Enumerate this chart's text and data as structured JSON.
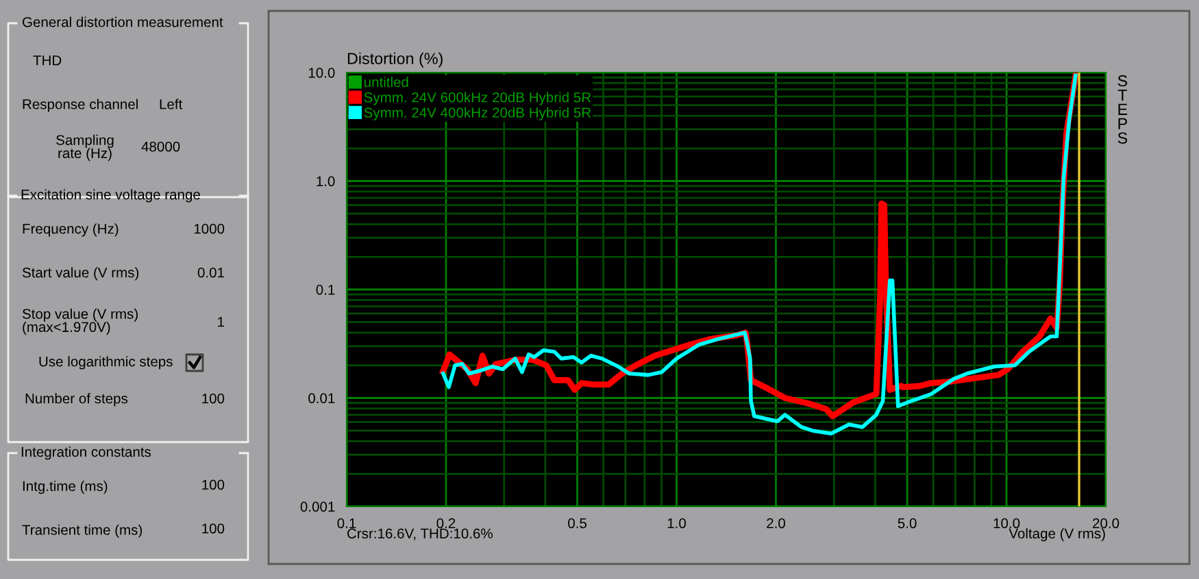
{
  "chart_data": [
    {
      "type": "other",
      "annotations": [
        "General distortion measurement",
        "THD",
        "Response channel",
        "Left",
        "Sampling\nrate (Hz)",
        "48000",
        "Excitation sine voltage range",
        "Frequency (Hz)",
        "1000",
        "Start value (V rms)",
        "0.01",
        "Stop value (V rms)\n(max<1.970V)",
        "1",
        "Use logarithmic steps",
        "Number of steps",
        "100",
        "Integration constants",
        "Intg.time (ms)",
        "100",
        "Transient time (ms)",
        "100"
      ]
    },
    {
      "type": "line",
      "ylabel": "Distortion (%)",
      "xlabel": "Voltage (V rms)",
      "log": "xy",
      "grid": true,
      "legend": "top left",
      "xlim": [
        0.1,
        20
      ],
      "xticks": [
        0.1,
        0.2,
        {
          "value": 0.3,
          "label": null
        },
        {
          "value": 0.4,
          "label": null
        },
        0.5,
        {
          "value": 0.6,
          "label": null
        },
        {
          "value": 0.7,
          "label": null
        },
        {
          "value": 0.8,
          "label": null
        },
        {
          "value": 0.9,
          "label": null
        },
        {
          "value": 1,
          "label": "1.0"
        },
        {
          "value": 2,
          "label": "2.0"
        },
        {
          "value": 3,
          "label": null
        },
        {
          "value": 4,
          "label": null
        },
        {
          "value": 5,
          "label": "5.0"
        },
        {
          "value": 6,
          "label": null
        },
        {
          "value": 7,
          "label": null
        },
        {
          "value": 8,
          "label": null
        },
        {
          "value": 9,
          "label": null
        },
        {
          "value": 10,
          "label": "10.0"
        },
        {
          "value": 20,
          "label": "20.0"
        }
      ],
      "ylim": [
        0.001,
        10
      ],
      "yticks": [
        0.001,
        {
          "value": 0.002,
          "label": null
        },
        {
          "value": 0.003,
          "label": null
        },
        {
          "value": 0.004,
          "label": null
        },
        {
          "value": 0.005,
          "label": null
        },
        {
          "value": 0.006,
          "label": null
        },
        {
          "value": 0.007,
          "label": null
        },
        {
          "value": 0.008,
          "label": null
        },
        {
          "value": 0.009,
          "label": null
        },
        0.01,
        {
          "value": 0.02,
          "label": null
        },
        {
          "value": 0.03,
          "label": null
        },
        {
          "value": 0.04,
          "label": null
        },
        {
          "value": 0.05,
          "label": null
        },
        {
          "value": 0.06,
          "label": null
        },
        {
          "value": 0.07,
          "label": null
        },
        {
          "value": 0.08,
          "label": null
        },
        {
          "value": 0.09,
          "label": null
        },
        0.1,
        {
          "value": 0.2,
          "label": null
        },
        {
          "value": 0.3,
          "label": null
        },
        {
          "value": 0.4,
          "label": null
        },
        {
          "value": 0.5,
          "label": null
        },
        {
          "value": 0.6,
          "label": null
        },
        {
          "value": 0.7,
          "label": null
        },
        {
          "value": 0.8,
          "label": null
        },
        {
          "value": 0.9,
          "label": null
        },
        {
          "value": 1,
          "label": "1.0"
        },
        {
          "value": 2,
          "label": null
        },
        {
          "value": 3,
          "label": null
        },
        {
          "value": 4,
          "label": null
        },
        {
          "value": 5,
          "label": null
        },
        {
          "value": 6,
          "label": null
        },
        {
          "value": 7,
          "label": null
        },
        {
          "value": 8,
          "label": null
        },
        {
          "value": 9,
          "label": null
        },
        {
          "value": 10,
          "label": "10.0"
        }
      ],
      "ref_lines": [
        {
          "axis": "x",
          "value": 16.6,
          "color": "#e8c830"
        }
      ],
      "annotations": [
        "Crsr:16.6V, THD:10.6%",
        "STEPS"
      ],
      "series": [
        {
          "name": "untitled",
          "color": "#00a000"
        },
        {
          "name": "Symm. 24V 600kHz 20dB Hybrid 5R",
          "color": "#ff0000",
          "x": [
            0.196,
            0.205,
            0.232,
            0.246,
            0.258,
            0.27,
            0.284,
            0.327,
            0.366,
            0.403,
            0.426,
            0.469,
            0.491,
            0.515,
            0.561,
            0.622,
            0.684,
            0.753,
            0.859,
            1.0,
            1.1,
            1.26,
            1.52,
            1.62,
            1.64,
            1.68,
            1.89,
            2.13,
            2.51,
            2.84,
            2.97,
            3.12,
            3.43,
            4.03,
            4.14,
            4.18,
            4.26,
            4.31,
            4.43,
            4.78,
            4.87,
            5.46,
            5.89,
            6.66,
            9.44,
            10.1,
            11.1,
            12.6,
            13.6,
            14.2,
            14.5,
            14.8,
            15.2,
            16.2
          ],
          "values": [
            0.0176,
            0.0252,
            0.0184,
            0.0137,
            0.0245,
            0.0168,
            0.0206,
            0.0225,
            0.0225,
            0.02,
            0.0146,
            0.0146,
            0.0119,
            0.0137,
            0.0133,
            0.0133,
            0.0168,
            0.02,
            0.0245,
            0.0284,
            0.031,
            0.0348,
            0.0379,
            0.04,
            0.0301,
            0.0146,
            0.0122,
            0.01,
            0.0089,
            0.0079,
            0.0068,
            0.0075,
            0.0091,
            0.0109,
            0.083,
            0.62,
            0.6,
            0.105,
            0.0119,
            0.0129,
            0.0126,
            0.0129,
            0.0137,
            0.0141,
            0.0163,
            0.0184,
            0.026,
            0.037,
            0.054,
            0.044,
            0.114,
            0.65,
            2.79,
            9.4
          ]
        },
        {
          "name": "Symm. 24V 400kHz 20dB Hybrid 5R",
          "color": "#00ffff",
          "x": [
            0.196,
            0.204,
            0.213,
            0.224,
            0.235,
            0.253,
            0.276,
            0.297,
            0.324,
            0.34,
            0.356,
            0.37,
            0.395,
            0.426,
            0.447,
            0.487,
            0.515,
            0.55,
            0.594,
            0.665,
            0.718,
            0.82,
            0.901,
            1.0,
            1.17,
            1.33,
            1.61,
            1.64,
            1.67,
            1.68,
            1.72,
            1.92,
            2.02,
            2.13,
            2.39,
            2.58,
            2.94,
            3.33,
            3.66,
            4.03,
            4.22,
            4.43,
            4.51,
            4.69,
            5.01,
            5.89,
            6.92,
            7.6,
            9.19,
            10.6,
            11.7,
            12.9,
            13.6,
            14.2,
            14.5,
            14.9,
            15.5,
            16.2
          ],
          "values": [
            0.0168,
            0.0126,
            0.02,
            0.0206,
            0.0168,
            0.0178,
            0.0195,
            0.0184,
            0.0231,
            0.0173,
            0.0252,
            0.0238,
            0.0275,
            0.0267,
            0.0231,
            0.0238,
            0.0212,
            0.0245,
            0.0231,
            0.0195,
            0.0168,
            0.0163,
            0.0173,
            0.0231,
            0.031,
            0.0348,
            0.04,
            0.031,
            0.0231,
            0.0094,
            0.0068,
            0.0063,
            0.0061,
            0.007,
            0.0054,
            0.005,
            0.0047,
            0.0057,
            0.0054,
            0.007,
            0.0094,
            0.121,
            0.121,
            0.0084,
            0.0091,
            0.0108,
            0.015,
            0.0168,
            0.0195,
            0.02,
            0.0267,
            0.033,
            0.037,
            0.037,
            0.153,
            1.07,
            3.73,
            9.4
          ]
        }
      ]
    }
  ]
}
